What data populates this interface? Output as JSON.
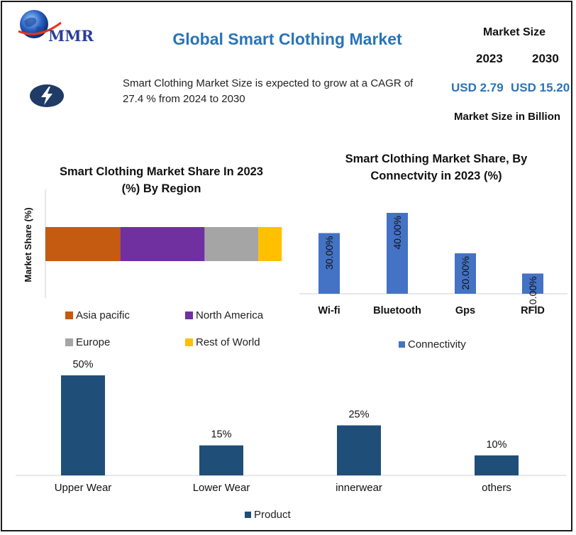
{
  "brand": {
    "logo_text": "MMR"
  },
  "header": {
    "title": "Global Smart Clothing Market",
    "market_size_label": "Market Size",
    "year_start": "2023",
    "year_end": "2030",
    "value_start": "USD 2.79",
    "value_end": "USD 15.20",
    "unit_label": "Market Size in Billion"
  },
  "summary": {
    "icon": "lightning-bolt-icon",
    "text": "Smart Clothing Market Size is expected to grow at a CAGR of 27.4 % from 2024 to 2030"
  },
  "colors": {
    "title_blue": "#2874b8",
    "bar_blue": "#4472c4",
    "bar_navy": "#1f4e79",
    "asia": "#c55a11",
    "north_america": "#7030a0",
    "europe": "#a5a5a5",
    "rest_of_world": "#ffc000"
  },
  "chart_data": [
    {
      "type": "bar",
      "orientation": "horizontal",
      "stacked": true,
      "title": "Smart Clothing Market Share In 2023 (%) By Region",
      "title_lines": [
        "Smart Clothing Market Share In 2023",
        "(%) By Region"
      ],
      "ylabel": "Market Share (%)",
      "xlabel": "",
      "series": [
        {
          "name": "Asia pacific",
          "values": [
            32
          ]
        },
        {
          "name": "North America",
          "values": [
            36
          ]
        },
        {
          "name": "Europe",
          "values": [
            23
          ]
        },
        {
          "name": "Rest of World",
          "values": [
            10
          ]
        }
      ],
      "xlim": [
        0,
        100
      ],
      "legend": "bottom",
      "grid": false
    },
    {
      "type": "bar",
      "title": "Smart Clothing Market Share, By Connectvity in 2023 (%)",
      "title_lines": [
        "Smart Clothing Market Share, By",
        "Connectvity in 2023 (%)"
      ],
      "categories": [
        "Wi-fi",
        "Bluetooth",
        "Gps",
        "RFID"
      ],
      "series": [
        {
          "name": "Connectivity",
          "values": [
            30,
            40,
            20,
            10
          ]
        }
      ],
      "data_labels": [
        "30.00%",
        "40.00%",
        "20.00%",
        "10.00%"
      ],
      "ylim": [
        0,
        40
      ],
      "legend": "bottom",
      "grid": false
    },
    {
      "type": "bar",
      "title": "",
      "categories": [
        "Upper Wear",
        "Lower Wear",
        "innerwear",
        "others"
      ],
      "series": [
        {
          "name": "Product",
          "values": [
            50,
            15,
            25,
            10
          ]
        }
      ],
      "data_labels": [
        "50%",
        "15%",
        "25%",
        "10%"
      ],
      "ylim": [
        0,
        50
      ],
      "legend": "bottom",
      "grid": false
    }
  ]
}
